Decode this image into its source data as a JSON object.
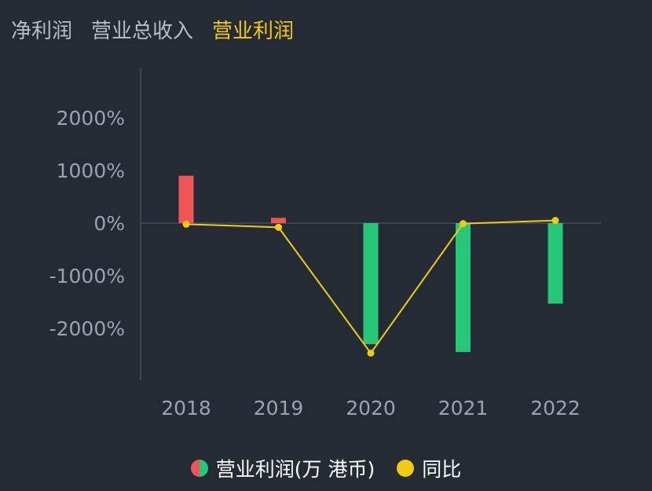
{
  "tabs": [
    {
      "label": "净利润",
      "active": false
    },
    {
      "label": "营业总收入",
      "active": false
    },
    {
      "label": "营业利润",
      "active": true
    }
  ],
  "colors": {
    "background": "#242b35",
    "positive_bar": "#f05454",
    "negative_bar": "#26c877",
    "line": "#f2cc0c",
    "active_tab": "#f2cc0c"
  },
  "chart_data": {
    "type": "bar",
    "categories": [
      "2018",
      "2019",
      "2020",
      "2021",
      "2022"
    ],
    "y_ticks": [
      "2000%",
      "1000%",
      "0%",
      "-1000%",
      "-2000%"
    ],
    "ylim": [
      -3000,
      3000
    ],
    "series": [
      {
        "name": "营业利润(万 港币)",
        "type": "bar",
        "values": [
          900,
          100,
          -2300,
          -2450,
          -1530
        ]
      },
      {
        "name": "同比",
        "type": "line",
        "values": [
          -20,
          -80,
          -2470,
          -10,
          50
        ]
      }
    ]
  },
  "legend": {
    "bar_label": "营业利润(万 港币)",
    "line_label": "同比"
  }
}
